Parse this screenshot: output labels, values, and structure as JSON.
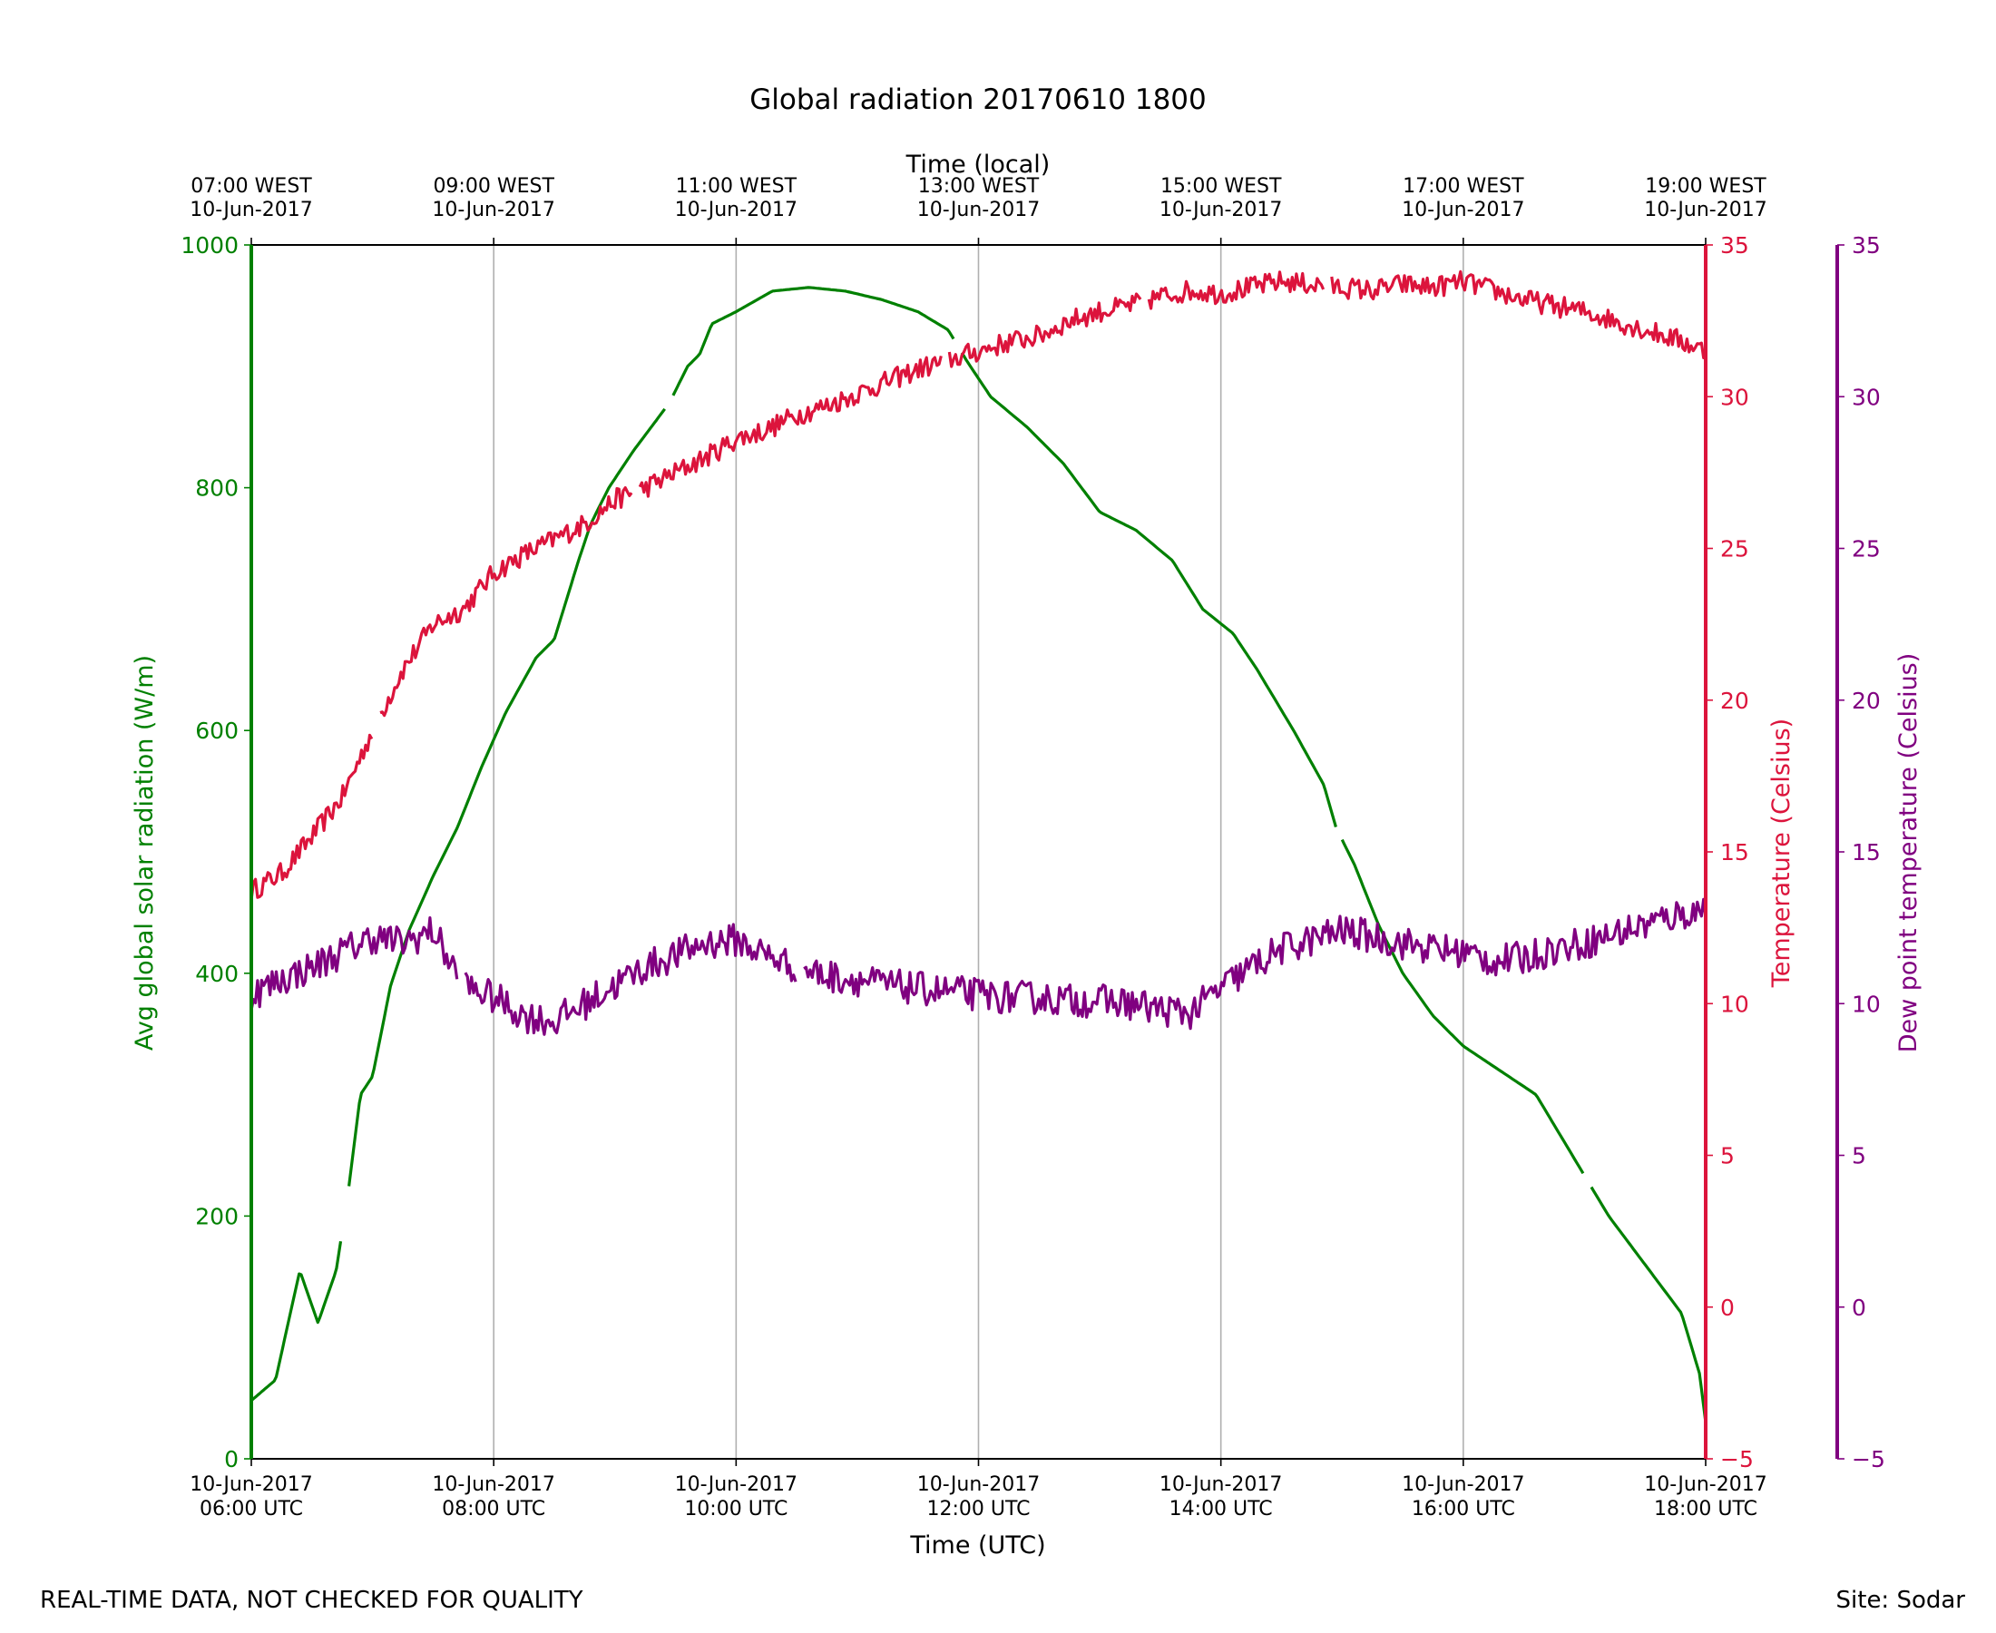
{
  "page": {
    "footer_left": "REAL-TIME DATA, NOT CHECKED FOR QUALITY",
    "footer_right": "Site: Sodar"
  },
  "chart_data": {
    "type": "line",
    "title": "Global radiation 20170610 1800",
    "xlabel": "Time (UTC)",
    "x2label": "Time (local)",
    "grid": "vertical",
    "xlim_hours": [
      6,
      18
    ],
    "x_ticks": [
      {
        "hour": 6,
        "date": "10-Jun-2017",
        "time": "06:00 UTC",
        "local_time": "07:00 WEST",
        "local_date": "10-Jun-2017"
      },
      {
        "hour": 8,
        "date": "10-Jun-2017",
        "time": "08:00 UTC",
        "local_time": "09:00 WEST",
        "local_date": "10-Jun-2017"
      },
      {
        "hour": 10,
        "date": "10-Jun-2017",
        "time": "10:00 UTC",
        "local_time": "11:00 WEST",
        "local_date": "10-Jun-2017"
      },
      {
        "hour": 12,
        "date": "10-Jun-2017",
        "time": "12:00 UTC",
        "local_time": "13:00 WEST",
        "local_date": "10-Jun-2017"
      },
      {
        "hour": 14,
        "date": "10-Jun-2017",
        "time": "14:00 UTC",
        "local_time": "15:00 WEST",
        "local_date": "10-Jun-2017"
      },
      {
        "hour": 16,
        "date": "10-Jun-2017",
        "time": "16:00 UTC",
        "local_time": "17:00 WEST",
        "local_date": "10-Jun-2017"
      },
      {
        "hour": 18,
        "date": "10-Jun-2017",
        "time": "18:00 UTC",
        "local_time": "19:00 WEST",
        "local_date": "10-Jun-2017"
      }
    ],
    "axes": {
      "radiation": {
        "label": "Avg global solar radiation (W/m)",
        "color": "#008000",
        "ylim": [
          0,
          1000
        ],
        "ticks": [
          "0",
          "200",
          "400",
          "600",
          "800",
          "1000"
        ]
      },
      "temperature": {
        "label": "Temperature (Celsius)",
        "color": "#DC143C",
        "ylim": [
          -5,
          35
        ],
        "ticks": [
          "−5",
          "0",
          "5",
          "10",
          "15",
          "20",
          "25",
          "30",
          "35"
        ]
      },
      "dewpoint": {
        "label": "Dew point temperature (Celsius)",
        "color": "#800080",
        "ylim": [
          -5,
          35
        ],
        "ticks": [
          "−5",
          "0",
          "5",
          "10",
          "15",
          "20",
          "25",
          "30",
          "35"
        ]
      }
    },
    "series": [
      {
        "name": "Avg global solar radiation",
        "axis": "radiation",
        "color": "#008000",
        "x": [
          6.0,
          6.2,
          6.4,
          6.55,
          6.7,
          6.8,
          6.9,
          7.0,
          7.15,
          7.3,
          7.5,
          7.7,
          7.9,
          8.1,
          8.35,
          8.5,
          8.7,
          8.8,
          8.95,
          9.15,
          9.3,
          9.45,
          9.5,
          9.6,
          9.7,
          9.8,
          10.0,
          10.3,
          10.6,
          10.9,
          11.2,
          11.5,
          11.75,
          11.9,
          12.1,
          12.4,
          12.7,
          13.0,
          13.3,
          13.6,
          13.85,
          14.1,
          14.3,
          14.6,
          14.85,
          14.95,
          15.1,
          15.3,
          15.5,
          15.75,
          16.0,
          16.3,
          16.6,
          16.9,
          17.2,
          17.5,
          17.8,
          17.95,
          18.0
        ],
        "values": [
          48,
          65,
          155,
          112,
          155,
          220,
          300,
          315,
          390,
          435,
          480,
          520,
          570,
          615,
          660,
          675,
          740,
          770,
          800,
          830,
          850,
          870,
          880,
          900,
          910,
          935,
          945,
          962,
          965,
          962,
          955,
          945,
          930,
          905,
          875,
          850,
          820,
          780,
          765,
          740,
          700,
          680,
          650,
          600,
          555,
          520,
          490,
          440,
          400,
          365,
          340,
          320,
          300,
          250,
          200,
          160,
          120,
          70,
          30
        ],
        "gaps_after_x": [
          6.75,
          9.42,
          11.8,
          14.95,
          17.0
        ]
      },
      {
        "name": "Temperature",
        "axis": "temperature",
        "color": "#DC143C",
        "x": [
          6.0,
          6.25,
          6.5,
          6.75,
          7.0,
          7.25,
          7.5,
          7.75,
          8.0,
          8.25,
          8.5,
          8.75,
          9.0,
          9.25,
          9.5,
          9.75,
          10.0,
          10.25,
          10.5,
          10.75,
          11.0,
          11.25,
          11.5,
          11.75,
          12.0,
          12.25,
          12.5,
          12.75,
          13.0,
          13.25,
          13.5,
          13.75,
          14.0,
          14.25,
          14.5,
          14.75,
          15.0,
          15.25,
          15.5,
          15.75,
          16.0,
          16.25,
          16.5,
          16.75,
          17.0,
          17.25,
          17.5,
          17.75,
          18.0
        ],
        "values": [
          13.7,
          14.3,
          15.5,
          16.8,
          19.0,
          21.0,
          22.5,
          23.0,
          24.2,
          24.8,
          25.3,
          25.8,
          26.6,
          27.0,
          27.5,
          28.0,
          28.6,
          28.9,
          29.4,
          29.7,
          30.1,
          30.5,
          30.9,
          31.2,
          31.5,
          31.8,
          32.0,
          32.5,
          32.8,
          33.0,
          33.3,
          33.5,
          33.4,
          33.6,
          33.8,
          33.7,
          33.6,
          33.5,
          33.7,
          33.6,
          33.8,
          33.5,
          33.2,
          33.0,
          32.8,
          32.5,
          32.2,
          31.9,
          31.5
        ],
        "gaps_after_x": [
          7.0,
          9.15,
          11.7,
          13.35,
          14.85
        ]
      },
      {
        "name": "Dew point temperature",
        "axis": "dewpoint",
        "color": "#800080",
        "x": [
          6.0,
          6.25,
          6.5,
          6.75,
          7.0,
          7.25,
          7.5,
          7.75,
          8.0,
          8.25,
          8.5,
          8.75,
          9.0,
          9.25,
          9.5,
          9.75,
          10.0,
          10.25,
          10.5,
          10.75,
          11.0,
          11.25,
          11.5,
          11.75,
          12.0,
          12.25,
          12.5,
          12.75,
          13.0,
          13.25,
          13.5,
          13.75,
          14.0,
          14.25,
          14.5,
          14.75,
          15.0,
          15.25,
          15.5,
          15.75,
          16.0,
          16.25,
          16.5,
          16.75,
          17.0,
          17.25,
          17.5,
          17.75,
          18.0
        ],
        "values": [
          10.3,
          10.8,
          11.2,
          11.7,
          12.2,
          12.0,
          12.4,
          10.6,
          10.2,
          9.6,
          9.4,
          10.0,
          10.6,
          11.2,
          11.6,
          12.0,
          12.1,
          11.6,
          11.2,
          10.9,
          10.8,
          10.6,
          10.5,
          10.4,
          10.3,
          10.2,
          10.2,
          10.1,
          10.1,
          10.0,
          9.8,
          9.7,
          10.5,
          11.2,
          11.8,
          12.1,
          12.4,
          12.2,
          12.0,
          11.8,
          11.7,
          11.4,
          11.5,
          11.8,
          12.0,
          12.3,
          12.6,
          12.9,
          13.1
        ],
        "gaps_after_x": [
          7.7,
          10.5
        ]
      }
    ]
  }
}
